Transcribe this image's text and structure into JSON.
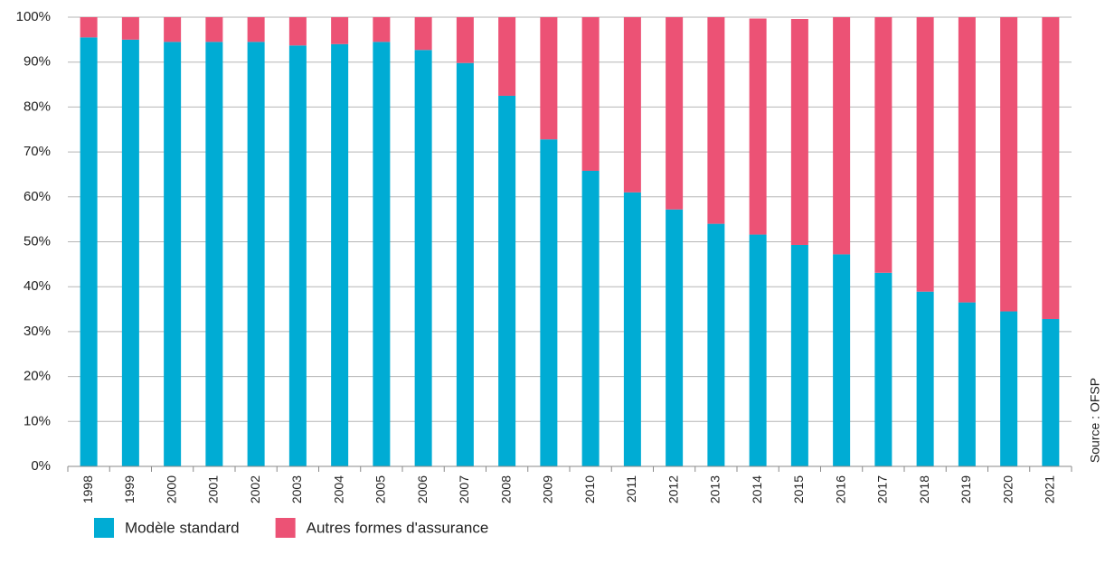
{
  "chart_data": {
    "type": "stacked_bar",
    "categories": [
      "1998",
      "1999",
      "2000",
      "2001",
      "2002",
      "2003",
      "2004",
      "2005",
      "2006",
      "2007",
      "2008",
      "2009",
      "2010",
      "2011",
      "2012",
      "2013",
      "2014",
      "2015",
      "2016",
      "2017",
      "2018",
      "2019",
      "2020",
      "2021"
    ],
    "series": [
      {
        "name": "Modèle standard",
        "color": "#00acd4",
        "values": [
          95.5,
          95,
          94.5,
          94.5,
          94.5,
          93.7,
          94,
          94.5,
          92.7,
          89.8,
          82.5,
          72.8,
          65.8,
          61,
          57.2,
          54,
          51.6,
          49.3,
          47.2,
          43.1,
          38.9,
          36.5,
          34.5,
          32.8
        ]
      },
      {
        "name": "Autres formes d'assurance",
        "color": "#ec5275",
        "values": [
          4.5,
          5,
          5.5,
          5.5,
          5.5,
          6.3,
          6,
          5.5,
          7.3,
          10.2,
          17.5,
          27.2,
          34.2,
          39,
          42.8,
          46,
          48.1,
          50.3,
          52.8,
          56.9,
          61.1,
          63.5,
          65.5,
          67.2
        ]
      }
    ],
    "ylim": [
      0,
      100
    ],
    "yticks": [
      {
        "value": 0,
        "label": "0%"
      },
      {
        "value": 10,
        "label": "10%"
      },
      {
        "value": 20,
        "label": "20%"
      },
      {
        "value": 30,
        "label": "30%"
      },
      {
        "value": 40,
        "label": "40%"
      },
      {
        "value": 50,
        "label": "50%"
      },
      {
        "value": 60,
        "label": "60%"
      },
      {
        "value": 70,
        "label": "70%"
      },
      {
        "value": 80,
        "label": "80%"
      },
      {
        "value": 90,
        "label": "90%"
      },
      {
        "value": 100,
        "label": "100%"
      }
    ],
    "grid": true,
    "source": "Source : OFSP"
  }
}
